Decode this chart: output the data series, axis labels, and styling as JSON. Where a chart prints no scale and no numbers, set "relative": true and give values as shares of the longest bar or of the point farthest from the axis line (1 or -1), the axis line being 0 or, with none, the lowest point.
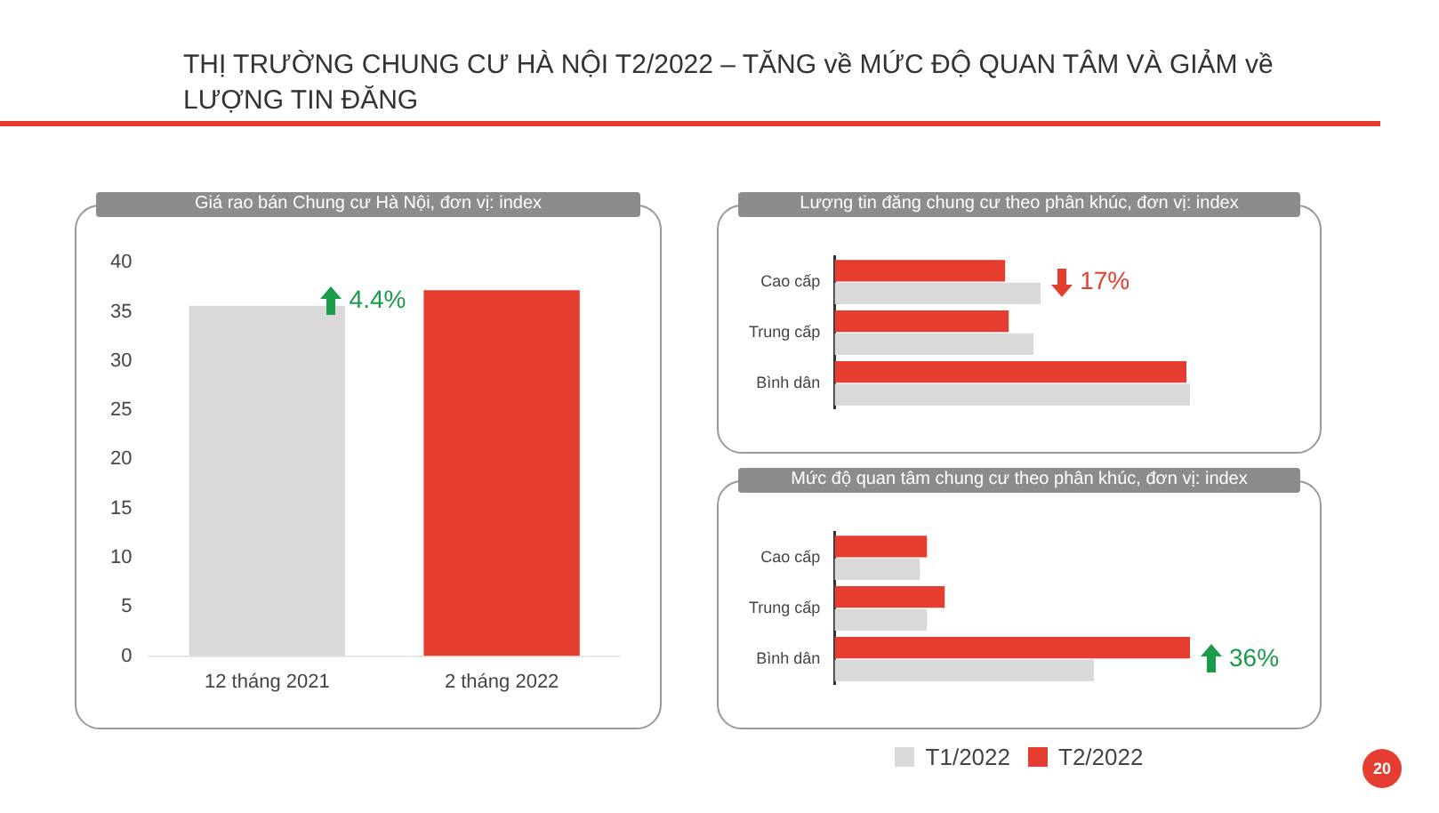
{
  "chart_data": [
    {
      "type": "other",
      "title": "THỊ TRƯỜNG CHUNG CƯ HÀ NỘI T2/2022 – TĂNG về MỨC ĐỘ QUAN TÂM VÀ GIẢM về LƯỢNG TIN ĐĂNG",
      "annotations": [
        "20"
      ]
    },
    {
      "type": "bar",
      "title": "Giá rao bán Chung cư Hà Nội, đơn vị: index",
      "categories": [
        "12 tháng 2021",
        "2 tháng 2022"
      ],
      "values": [
        35.6,
        37.2
      ],
      "colors": [
        "#d9d9d9",
        "#e53e30"
      ],
      "ylim": [
        0,
        40
      ],
      "yticks": [
        0,
        5,
        10,
        15,
        20,
        25,
        30,
        35,
        40
      ],
      "grid": false,
      "annotations": [
        "4.4%"
      ]
    },
    {
      "type": "bar",
      "title": "Lượng tin đăng chung cư theo phân khúc, đơn vị: index",
      "orientation": "horizontal",
      "relative": true,
      "categories": [
        "Cao cấp",
        "Trung cấp",
        "Bình dân"
      ],
      "series": [
        {
          "color": "#d9d9d9",
          "values": [
            0.58,
            0.56,
            1
          ]
        },
        {
          "color": "#e53e30",
          "values": [
            0.48,
            0.49,
            0.99
          ]
        }
      ],
      "annotations": [
        {
          "text": "17%",
          "x": 0.58,
          "y": "Cao cấp"
        }
      ]
    },
    {
      "type": "bar",
      "title": "Mức độ quan tâm chung cư theo phân khúc, đơn vị: index",
      "orientation": "horizontal",
      "relative": true,
      "categories": [
        "Cao cấp",
        "Trung cấp",
        "Bình dân"
      ],
      "series": [
        {
          "name": "T1/2022",
          "color": "#d9d9d9",
          "values": [
            0.24,
            0.26,
            0.73
          ]
        },
        {
          "name": "T2/2022",
          "color": "#e53e30",
          "values": [
            0.26,
            0.31,
            1
          ]
        }
      ],
      "legend": "bottom",
      "annotations": [
        {
          "text": "36%",
          "x": 1,
          "y": "Bình dân"
        }
      ]
    }
  ]
}
